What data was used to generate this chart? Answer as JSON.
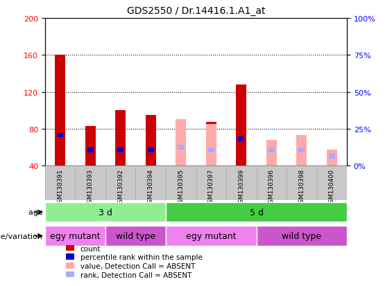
{
  "title": "GDS2550 / Dr.14416.1.A1_at",
  "samples": [
    "GSM130391",
    "GSM130393",
    "GSM130392",
    "GSM130394",
    "GSM130395",
    "GSM130397",
    "GSM130399",
    "GSM130396",
    "GSM130398",
    "GSM130400"
  ],
  "count_values": [
    160,
    83,
    100,
    95,
    0,
    87,
    128,
    0,
    0,
    0
  ],
  "rank_values": [
    73,
    57,
    57,
    57,
    0,
    57,
    69,
    0,
    0,
    0
  ],
  "absent_value_values": [
    0,
    0,
    0,
    0,
    90,
    85,
    0,
    68,
    73,
    57
  ],
  "absent_rank_values": [
    0,
    0,
    0,
    0,
    60,
    57,
    0,
    57,
    57,
    50
  ],
  "count_color": "#cc0000",
  "rank_color": "#0000cc",
  "absent_value_color": "#ffaaaa",
  "absent_rank_color": "#aaaaff",
  "ylim_left": [
    40,
    200
  ],
  "ylim_right": [
    0,
    100
  ],
  "yticks_left": [
    40,
    80,
    120,
    160,
    200
  ],
  "yticks_right": [
    0,
    25,
    50,
    75,
    100
  ],
  "age_groups": [
    {
      "text": "3 d",
      "start": 0,
      "end": 3,
      "color": "#90ee90"
    },
    {
      "text": "5 d",
      "start": 4,
      "end": 9,
      "color": "#44cc44"
    }
  ],
  "genotype_groups": [
    {
      "text": "egy mutant",
      "start": 0,
      "end": 1,
      "color": "#ee82ee"
    },
    {
      "text": "wild type",
      "start": 2,
      "end": 3,
      "color": "#cc55cc"
    },
    {
      "text": "egy mutant",
      "start": 4,
      "end": 6,
      "color": "#ee82ee"
    },
    {
      "text": "wild type",
      "start": 7,
      "end": 9,
      "color": "#cc55cc"
    }
  ],
  "legend_items": [
    {
      "label": "count",
      "color": "#cc0000"
    },
    {
      "label": "percentile rank within the sample",
      "color": "#0000cc"
    },
    {
      "label": "value, Detection Call = ABSENT",
      "color": "#ffaaaa"
    },
    {
      "label": "rank, Detection Call = ABSENT",
      "color": "#aaaaff"
    }
  ],
  "bar_width": 0.35,
  "rank_bar_width": 0.2,
  "rank_bar_height": 5,
  "age_label": "age",
  "genotype_label": "genotype/variation",
  "dotted_lines": [
    80,
    120,
    160
  ]
}
